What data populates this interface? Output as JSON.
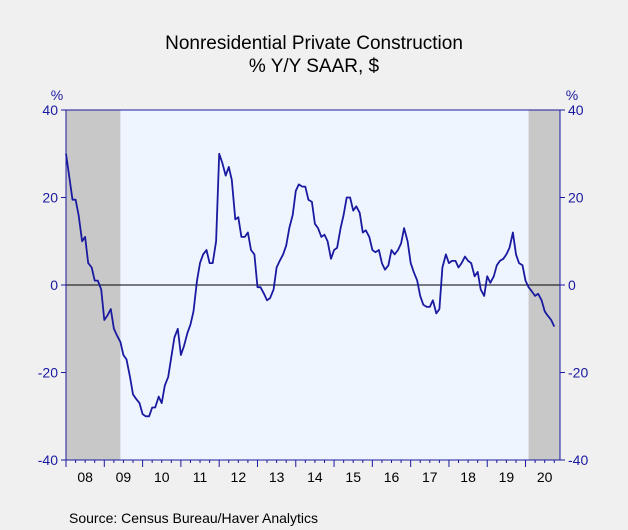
{
  "title": "Nonresidential Private Construction",
  "subtitle": "% Y/Y   SAAR, $",
  "source": "Source:  Census Bureau/Haver Analytics",
  "colors": {
    "line": "#1a1aa0",
    "plot_bg": "#eef5ff",
    "shade": "#c8c8c8",
    "axis": "#1a1aa0"
  },
  "chart_data": {
    "type": "line",
    "title": "Nonresidential Private Construction",
    "subtitle": "% Y/Y   SAAR, $",
    "ylabel_left": "%",
    "ylabel_right": "%",
    "ylim": [
      -40,
      40
    ],
    "yticks": [
      40,
      20,
      0,
      -20,
      -40
    ],
    "xlim": [
      2008.0,
      2020.9
    ],
    "xtick_labels": [
      "08",
      "09",
      "10",
      "11",
      "12",
      "13",
      "14",
      "15",
      "16",
      "17",
      "18",
      "19",
      "20"
    ],
    "recessions": [
      [
        2008.0,
        2009.42
      ],
      [
        2020.08,
        2020.9
      ]
    ],
    "grid": false,
    "series": [
      {
        "x": [
          2008.0,
          2008.08,
          2008.17,
          2008.25,
          2008.33,
          2008.42,
          2008.5,
          2008.58,
          2008.67,
          2008.75,
          2008.83,
          2008.92,
          2009.0,
          2009.08,
          2009.17,
          2009.25,
          2009.33,
          2009.42,
          2009.5,
          2009.58,
          2009.67,
          2009.75,
          2009.83,
          2009.92,
          2010.0,
          2010.08,
          2010.17,
          2010.25,
          2010.33,
          2010.42,
          2010.5,
          2010.58,
          2010.67,
          2010.75,
          2010.83,
          2010.92,
          2011.0,
          2011.08,
          2011.17,
          2011.25,
          2011.33,
          2011.42,
          2011.5,
          2011.58,
          2011.67,
          2011.75,
          2011.83,
          2011.92,
          2012.0,
          2012.08,
          2012.17,
          2012.25,
          2012.33,
          2012.42,
          2012.5,
          2012.58,
          2012.67,
          2012.75,
          2012.83,
          2012.92,
          2013.0,
          2013.08,
          2013.17,
          2013.25,
          2013.33,
          2013.42,
          2013.5,
          2013.58,
          2013.67,
          2013.75,
          2013.83,
          2013.92,
          2014.0,
          2014.08,
          2014.17,
          2014.25,
          2014.33,
          2014.42,
          2014.5,
          2014.58,
          2014.67,
          2014.75,
          2014.83,
          2014.92,
          2015.0,
          2015.08,
          2015.17,
          2015.25,
          2015.33,
          2015.42,
          2015.5,
          2015.58,
          2015.67,
          2015.75,
          2015.83,
          2015.92,
          2016.0,
          2016.08,
          2016.17,
          2016.25,
          2016.33,
          2016.42,
          2016.5,
          2016.58,
          2016.67,
          2016.75,
          2016.83,
          2016.92,
          2017.0,
          2017.08,
          2017.17,
          2017.25,
          2017.33,
          2017.42,
          2017.5,
          2017.58,
          2017.67,
          2017.75,
          2017.83,
          2017.92,
          2018.0,
          2018.08,
          2018.17,
          2018.25,
          2018.33,
          2018.42,
          2018.5,
          2018.58,
          2018.67,
          2018.75,
          2018.83,
          2018.92,
          2019.0,
          2019.08,
          2019.17,
          2019.25,
          2019.33,
          2019.42,
          2019.5,
          2019.58,
          2019.67,
          2019.75,
          2019.83,
          2019.92,
          2020.0,
          2020.08,
          2020.17,
          2020.25,
          2020.33,
          2020.42,
          2020.5,
          2020.58,
          2020.67,
          2020.75
        ],
        "y": [
          30,
          25,
          19.5,
          19.5,
          16,
          10,
          11,
          5,
          4,
          1,
          1,
          -1,
          -8,
          -7,
          -5.5,
          -10,
          -11.5,
          -13,
          -16,
          -17,
          -21,
          -25,
          -26,
          -27,
          -29.5,
          -30,
          -30,
          -28,
          -28,
          -25.5,
          -27,
          -23,
          -21,
          -16.5,
          -12,
          -10,
          -16,
          -14,
          -11,
          -9,
          -6,
          1,
          5,
          7,
          8,
          5,
          5,
          10,
          30,
          28,
          25,
          27,
          24,
          15,
          15.5,
          11,
          11,
          12,
          8,
          7,
          -0.5,
          -0.5,
          -2,
          -3.5,
          -3,
          -1,
          4,
          5.5,
          7,
          9,
          13,
          16,
          21.5,
          23,
          22.5,
          22.5,
          19.5,
          19,
          14,
          13,
          11,
          11.5,
          10,
          6,
          8,
          8.5,
          13,
          16,
          20,
          20,
          17,
          18,
          16.5,
          12,
          12.5,
          11,
          8,
          7.5,
          8,
          5,
          3.5,
          4.5,
          8,
          7,
          8,
          9.5,
          13,
          10,
          5,
          3,
          1,
          -2.5,
          -4.5,
          -5,
          -5,
          -3.5,
          -6.5,
          -5.5,
          4,
          7,
          5,
          5.5,
          5.5,
          4,
          5,
          6.5,
          5.5,
          5,
          2,
          3,
          -1,
          -2.5,
          2,
          0.5,
          2,
          4.5,
          5.5,
          6,
          7,
          8.5,
          12,
          7,
          5,
          4.5,
          1,
          -0.5,
          -1.5,
          -2.5,
          -2,
          -3.5,
          -6,
          -7,
          -8,
          -9.5
        ]
      }
    ]
  }
}
